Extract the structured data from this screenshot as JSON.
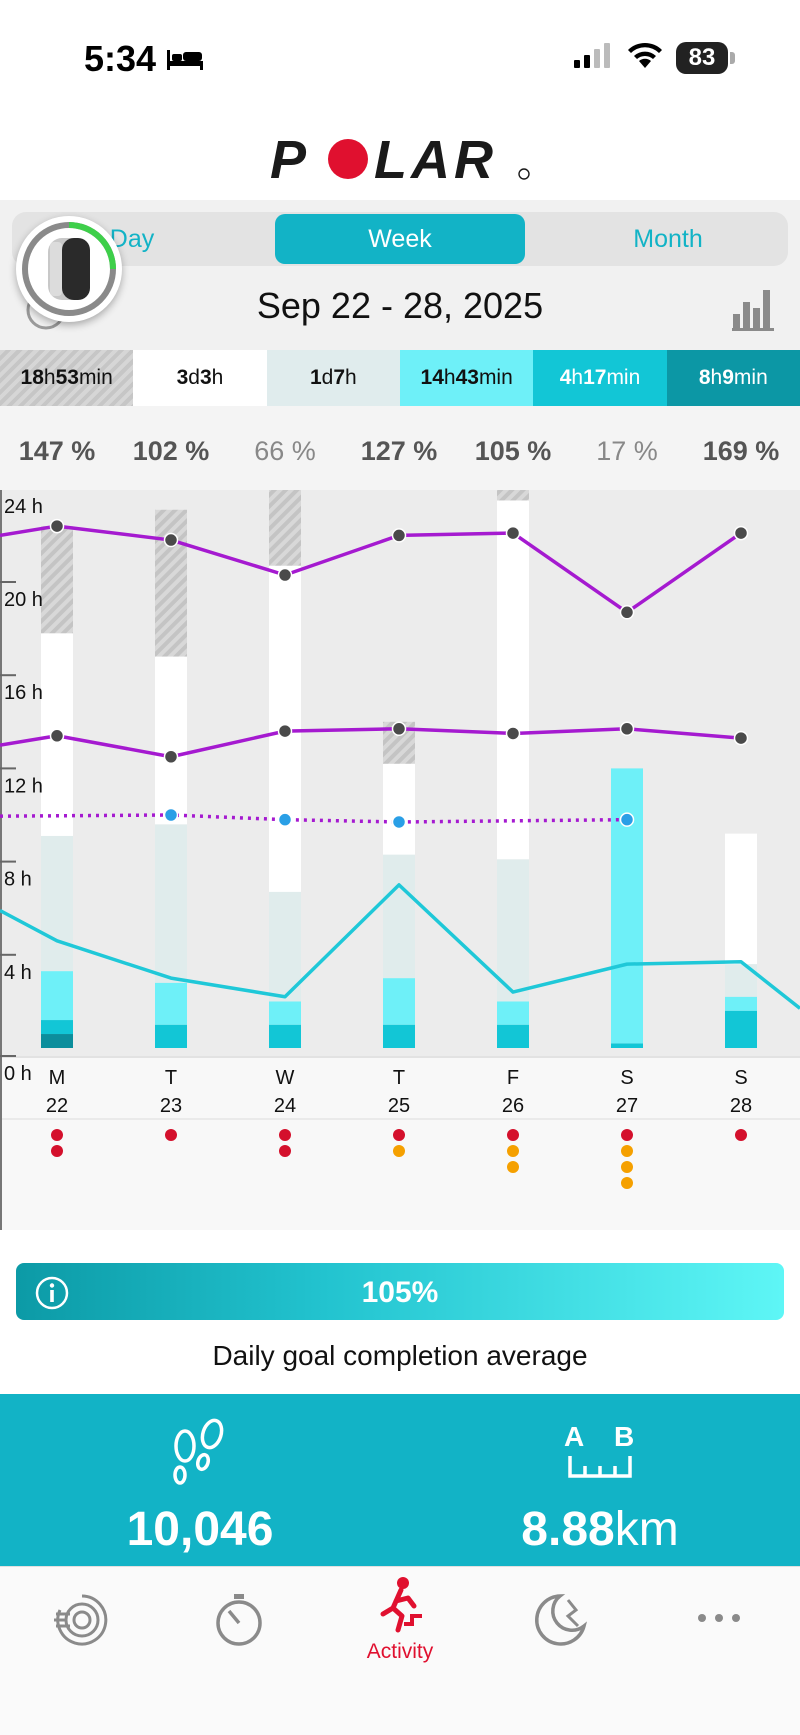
{
  "status_bar": {
    "time": "5:34",
    "battery": "83",
    "icons": [
      "bed-icon",
      "cellular-signal-icon",
      "wifi-icon",
      "battery-icon"
    ]
  },
  "header": {
    "logo_text": "POLAR",
    "logo_accent": "#e0102f"
  },
  "tabs": [
    {
      "label": "Day",
      "selected": false
    },
    {
      "label": "Week",
      "selected": true
    },
    {
      "label": "Month",
      "selected": false
    }
  ],
  "date_range": "Sep 22 - 28, 2025",
  "activity_time_strip": [
    {
      "parts": [
        [
          "18",
          "h"
        ],
        [
          "53",
          "min"
        ]
      ]
    },
    {
      "parts": [
        [
          "3",
          "d"
        ],
        [
          "3",
          "h"
        ]
      ]
    },
    {
      "parts": [
        [
          "1",
          "d"
        ],
        [
          "7",
          "h"
        ]
      ]
    },
    {
      "parts": [
        [
          "14",
          "h"
        ],
        [
          "43",
          "min"
        ]
      ]
    },
    {
      "parts": [
        [
          "4",
          "h"
        ],
        [
          "17",
          "min"
        ]
      ]
    },
    {
      "parts": [
        [
          "8",
          "h"
        ],
        [
          "9",
          "min"
        ]
      ]
    }
  ],
  "goal_percentages": [
    "147 %",
    "102 %",
    "66 %",
    "127 %",
    "105 %",
    "17 %",
    "169 %"
  ],
  "chart_data": {
    "type": "bar",
    "y_ticks": [
      "24 h",
      "20 h",
      "16 h",
      "12 h",
      "8 h",
      "4 h",
      "0 h"
    ],
    "ylim": [
      0,
      24
    ],
    "categories": [
      {
        "day": "M",
        "date": "22"
      },
      {
        "day": "T",
        "date": "23"
      },
      {
        "day": "W",
        "date": "24"
      },
      {
        "day": "T",
        "date": "25"
      },
      {
        "day": "F",
        "date": "26"
      },
      {
        "day": "S",
        "date": "27"
      },
      {
        "day": "S",
        "date": "28"
      }
    ],
    "stacked_hours": [
      {
        "high": 0.6,
        "medium": 0.6,
        "light": 2.1,
        "sedentary": 5.8,
        "resting": 8.7,
        "sleep": 4.6
      },
      {
        "high": 0.0,
        "medium": 1.0,
        "light": 1.8,
        "sedentary": 6.8,
        "resting": 7.2,
        "sleep": 6.3
      },
      {
        "high": 0.0,
        "medium": 1.0,
        "light": 1.0,
        "sedentary": 4.7,
        "resting": 14.0,
        "sleep": 4.0
      },
      {
        "high": 0.0,
        "medium": 1.0,
        "light": 2.0,
        "sedentary": 5.3,
        "resting": 3.9,
        "sleep": 1.8
      },
      {
        "high": 0.0,
        "medium": 1.0,
        "light": 1.0,
        "sedentary": 6.1,
        "resting": 15.4,
        "sleep": 1.5
      },
      {
        "high": 0.0,
        "medium": 0.2,
        "light": 11.8,
        "sedentary": 0.0,
        "resting": 0.0,
        "sleep": 0.0
      },
      {
        "high": 0.0,
        "medium": 1.6,
        "light": 0.6,
        "sedentary": 1.4,
        "resting": 5.6,
        "sleep": 0.0
      }
    ],
    "series": [
      {
        "values": [
          22.4,
          21.8,
          20.3,
          22.0,
          22.1,
          18.7,
          22.1
        ],
        "color": "#a51ad0",
        "style": "solid"
      },
      {
        "values": [
          13.4,
          12.5,
          13.6,
          13.7,
          13.5,
          13.7,
          13.3
        ],
        "color": "#a51ad0",
        "style": "solid"
      },
      {
        "values": [
          null,
          10.0,
          9.8,
          9.7,
          null,
          9.8,
          null
        ],
        "color": "#a51ad0",
        "style": "dotted"
      },
      {
        "values": [
          4.6,
          3.0,
          2.2,
          7.0,
          2.4,
          3.6,
          3.7
        ],
        "color": "#1fc8d8",
        "style": "solid"
      }
    ],
    "colors": {
      "high": "#0c8e9c",
      "medium": "#12c6d6",
      "light": "#6ef0f8",
      "sedentary": "#e0ecec",
      "resting": "#ffffff",
      "sleep": "#cfcfcf"
    },
    "dot_markers": [
      {
        "red": 2,
        "orange": 0
      },
      {
        "red": 1,
        "orange": 0
      },
      {
        "red": 2,
        "orange": 0
      },
      {
        "red": 1,
        "orange": 1
      },
      {
        "red": 1,
        "orange": 2
      },
      {
        "red": 1,
        "orange": 3
      },
      {
        "red": 1,
        "orange": 0
      }
    ]
  },
  "goal": {
    "value": "105%",
    "label": "Daily goal completion average"
  },
  "stats": {
    "steps": "10,046",
    "distance_value": "8.88",
    "distance_unit": "km",
    "ab_labels": [
      "A",
      "B"
    ]
  },
  "nav": [
    {
      "icon": "training-load-icon",
      "label": ""
    },
    {
      "icon": "stopwatch-icon",
      "label": ""
    },
    {
      "icon": "activity-icon",
      "label": "Activity",
      "active": true
    },
    {
      "icon": "sleep-icon",
      "label": ""
    },
    {
      "icon": "more-icon",
      "label": ""
    }
  ]
}
